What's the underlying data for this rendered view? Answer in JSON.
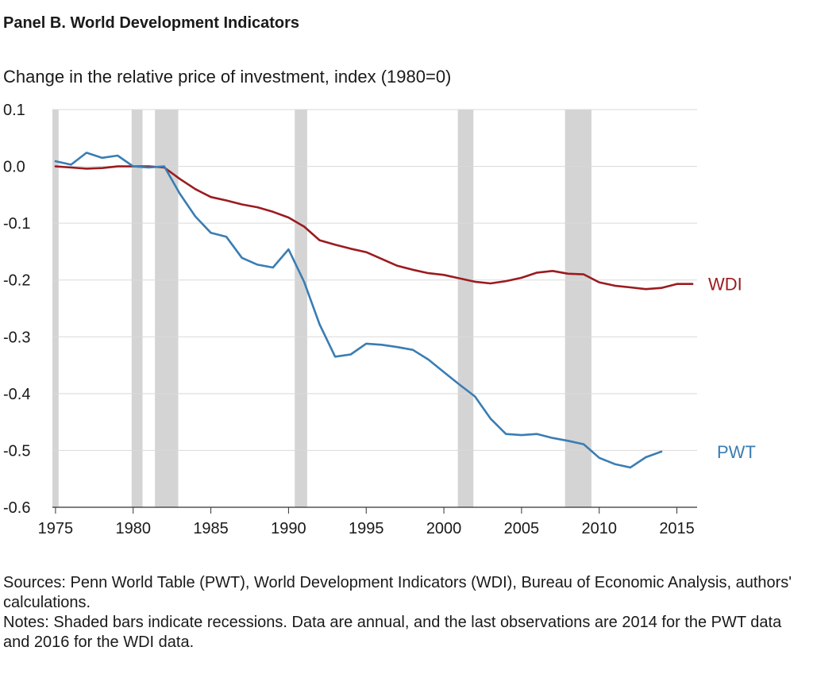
{
  "panel_title": "Panel B. World Development Indicators",
  "sources": "Sources: Penn World Table (PWT), World Development Indicators (WDI), Bureau of Economic Analysis, authors' calculations.",
  "notes": "Notes: Shaded bars indicate recessions. Data are annual, and the last observations are 2014 for the PWT data and 2016 for the WDI data.",
  "colors": {
    "wdi": "#9b1b1f",
    "pwt": "#3a7db3",
    "recession": "#d4d4d4",
    "grid": "#d9d9d9",
    "axis": "#333333"
  },
  "chart_data": {
    "type": "line",
    "title": "",
    "ylabel": "Change in the relative price of investment, index (1980=0)",
    "xlabel": "",
    "xlim": [
      1974.8,
      2016.3
    ],
    "ylim": [
      -0.6,
      0.1
    ],
    "x_ticks": [
      1975,
      1980,
      1985,
      1990,
      1995,
      2000,
      2005,
      2010,
      2015
    ],
    "y_ticks": [
      0.1,
      0.0,
      -0.1,
      -0.2,
      -0.3,
      -0.4,
      -0.5,
      -0.6
    ],
    "y_tick_labels": [
      "0.1",
      "0.0",
      "-0.1",
      "-0.2",
      "-0.3",
      "-0.4",
      "-0.5",
      "-0.6"
    ],
    "grid": true,
    "legend": "direct labels at line ends",
    "recessions": [
      [
        1974.8,
        1975.2
      ],
      [
        1979.9,
        1980.6
      ],
      [
        1981.4,
        1982.9
      ],
      [
        1990.4,
        1991.2
      ],
      [
        2000.9,
        2001.9
      ],
      [
        2007.8,
        2009.5
      ]
    ],
    "series": [
      {
        "name": "WDI",
        "color": "#9b1b1f",
        "x": [
          1975,
          1976,
          1977,
          1978,
          1979,
          1980,
          1981,
          1982,
          1983,
          1984,
          1985,
          1986,
          1987,
          1988,
          1989,
          1990,
          1991,
          1992,
          1993,
          1994,
          1995,
          1996,
          1997,
          1998,
          1999,
          2000,
          2001,
          2002,
          2003,
          2004,
          2005,
          2006,
          2007,
          2008,
          2009,
          2010,
          2011,
          2012,
          2013,
          2014,
          2015,
          2016
        ],
        "y": [
          0.0,
          -0.002,
          -0.004,
          -0.003,
          0.0,
          0.0,
          0.0,
          -0.002,
          -0.022,
          -0.04,
          -0.054,
          -0.06,
          -0.067,
          -0.072,
          -0.08,
          -0.09,
          -0.106,
          -0.13,
          -0.138,
          -0.145,
          -0.151,
          -0.163,
          -0.175,
          -0.182,
          -0.188,
          -0.191,
          -0.197,
          -0.203,
          -0.206,
          -0.202,
          -0.196,
          -0.187,
          -0.184,
          -0.189,
          -0.19,
          -0.204,
          -0.21,
          -0.213,
          -0.216,
          -0.214,
          -0.207,
          -0.207
        ]
      },
      {
        "name": "PWT",
        "color": "#3a7db3",
        "x": [
          1975,
          1976,
          1977,
          1978,
          1979,
          1980,
          1981,
          1982,
          1983,
          1984,
          1985,
          1986,
          1987,
          1988,
          1989,
          1990,
          1991,
          1992,
          1993,
          1994,
          1995,
          1996,
          1997,
          1998,
          1999,
          2000,
          2001,
          2002,
          2003,
          2004,
          2005,
          2006,
          2007,
          2008,
          2009,
          2010,
          2011,
          2012,
          2013,
          2014
        ],
        "y": [
          0.009,
          0.003,
          0.024,
          0.015,
          0.019,
          0.0,
          -0.002,
          0.0,
          -0.048,
          -0.088,
          -0.117,
          -0.124,
          -0.161,
          -0.173,
          -0.178,
          -0.146,
          -0.203,
          -0.278,
          -0.335,
          -0.331,
          -0.312,
          -0.314,
          -0.318,
          -0.323,
          -0.34,
          -0.362,
          -0.384,
          -0.405,
          -0.444,
          -0.471,
          -0.473,
          -0.471,
          -0.478,
          -0.483,
          -0.489,
          -0.513,
          -0.524,
          -0.53,
          -0.512,
          -0.502
        ]
      }
    ]
  }
}
